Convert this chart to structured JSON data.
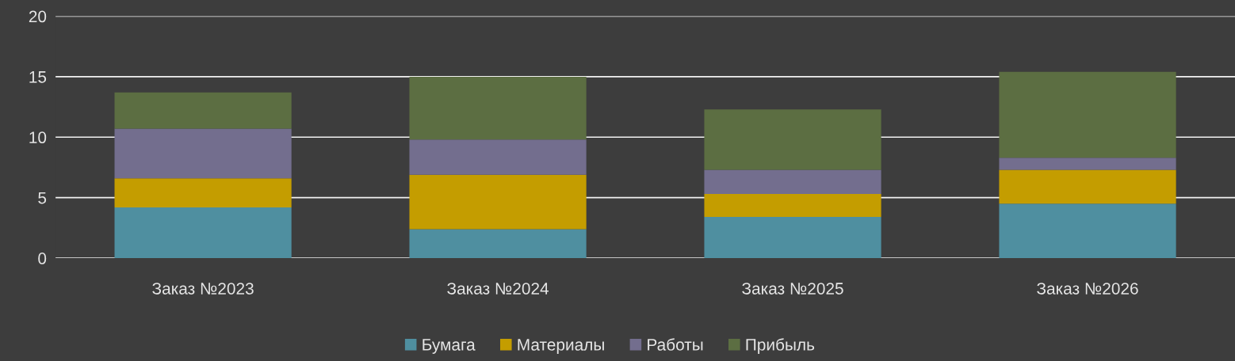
{
  "chart_data": {
    "type": "bar",
    "stacked": true,
    "categories": [
      "Заказ №2023",
      "Заказ №2024",
      "Заказ №2025",
      "Заказ №2026"
    ],
    "series": [
      {
        "name": "Бумага",
        "color": "#4f8fa0",
        "values": [
          4.2,
          2.4,
          3.4,
          4.5
        ]
      },
      {
        "name": "Материалы",
        "color": "#c49d00",
        "values": [
          2.4,
          4.5,
          1.9,
          2.8
        ]
      },
      {
        "name": "Работы",
        "color": "#736e8e",
        "values": [
          4.1,
          2.9,
          2.0,
          1.0
        ]
      },
      {
        "name": "Прибыль",
        "color": "#5c6e42",
        "values": [
          3.0,
          5.2,
          5.0,
          7.1
        ]
      }
    ],
    "ylim": [
      0,
      20
    ],
    "yticks": [
      0,
      5,
      10,
      15,
      20
    ],
    "grid": "y",
    "legend": "bottom"
  }
}
